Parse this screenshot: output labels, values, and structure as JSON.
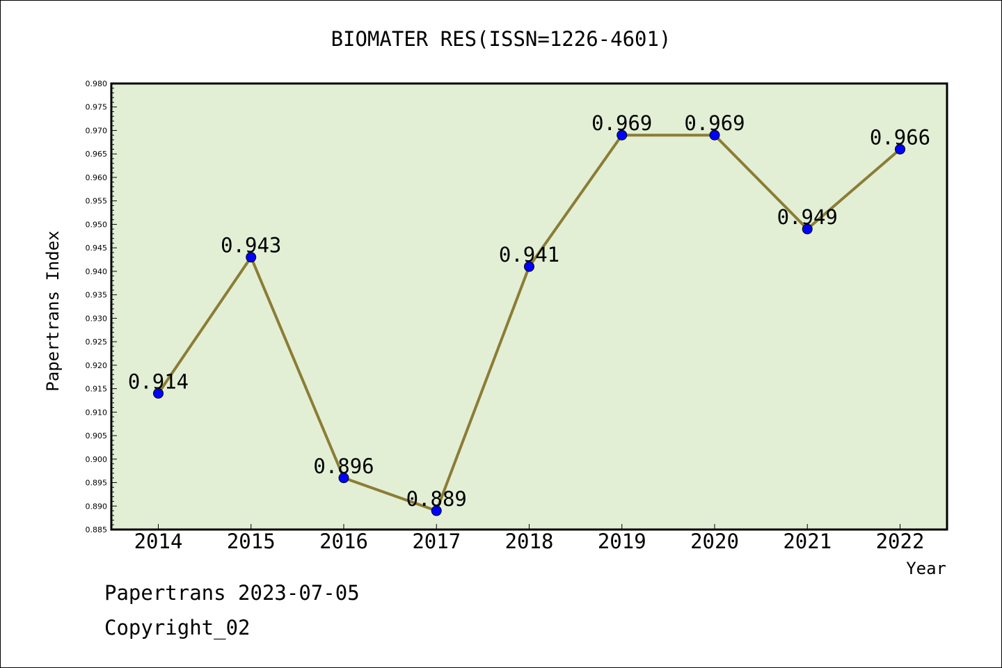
{
  "chart_data": {
    "type": "line",
    "title": "BIOMATER RES(ISSN=1226-4601)",
    "xlabel": "Year",
    "ylabel": "Papertrans Index",
    "categories": [
      "2014",
      "2015",
      "2016",
      "2017",
      "2018",
      "2019",
      "2020",
      "2021",
      "2022"
    ],
    "values": [
      0.914,
      0.943,
      0.896,
      0.889,
      0.941,
      0.969,
      0.969,
      0.949,
      0.966
    ],
    "data_labels": [
      "0.914",
      "0.943",
      "0.896",
      "0.889",
      "0.941",
      "0.969",
      "0.969",
      "0.949",
      "0.966"
    ],
    "ylim": [
      0.885,
      0.98
    ],
    "ytick_labels": [
      "0.885",
      "0.890",
      "0.895",
      "0.900",
      "0.905",
      "0.910",
      "0.915",
      "0.920",
      "0.925",
      "0.930",
      "0.935",
      "0.940",
      "0.945",
      "0.950",
      "0.955",
      "0.960",
      "0.965",
      "0.970",
      "0.975",
      "0.980"
    ],
    "grid": false,
    "colors": {
      "plot_background": "#e2efd5",
      "line": "#8b7d35",
      "marker": "#0000ff"
    }
  },
  "footer": {
    "line1": "Papertrans 2023-07-05",
    "line2": "Copyright_02"
  }
}
